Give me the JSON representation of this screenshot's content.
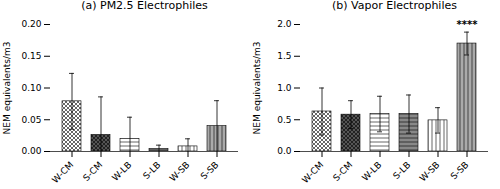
{
  "chart_data": [
    {
      "type": "bar",
      "title": "(a) PM2.5 Electrophiles",
      "ylabel": "NEM equivalents/m3",
      "categories": [
        "W-CM",
        "S-CM",
        "W-LB",
        "S-LB",
        "W-SB",
        "S-SB"
      ],
      "values": [
        0.079,
        0.026,
        0.02,
        0.004,
        0.008,
        0.04
      ],
      "errors": [
        0.044,
        0.06,
        0.034,
        0.006,
        0.012,
        0.04
      ],
      "colors": [
        "white",
        "#555555",
        "white",
        "#888888",
        "white",
        "#aaaaaa"
      ],
      "ylim": [
        0,
        0.2
      ],
      "yticks": [
        {
          "value": 0,
          "label": "0.00"
        },
        0.05,
        {
          "value": 0.1,
          "label": "0.10"
        },
        0.15,
        {
          "value": 0.2,
          "label": "0.20"
        }
      ],
      "grid": false
    },
    {
      "type": "bar",
      "title": "(b) Vapor Electrophiles",
      "ylabel": "NEM equivalents/m3",
      "categories": [
        "W-CM",
        "S-CM",
        "W-LB",
        "S-LB",
        "W-SB",
        "S-SB"
      ],
      "values": [
        0.63,
        0.58,
        0.59,
        0.59,
        0.49,
        1.7
      ],
      "errors": [
        0.37,
        0.22,
        0.28,
        0.3,
        0.2,
        0.18
      ],
      "colors": [
        "white",
        "#555555",
        "white",
        "#888888",
        "white",
        "#aaaaaa"
      ],
      "ylim": [
        0,
        2.0
      ],
      "yticks": [
        {
          "value": 0,
          "label": "0.0"
        },
        0.5,
        {
          "value": 1.0,
          "label": "1.0"
        },
        1.5,
        {
          "value": 2.0,
          "label": "2.0"
        }
      ],
      "annotations": [
        {
          "category": "S-SB",
          "text": "****"
        }
      ],
      "grid": false
    }
  ]
}
